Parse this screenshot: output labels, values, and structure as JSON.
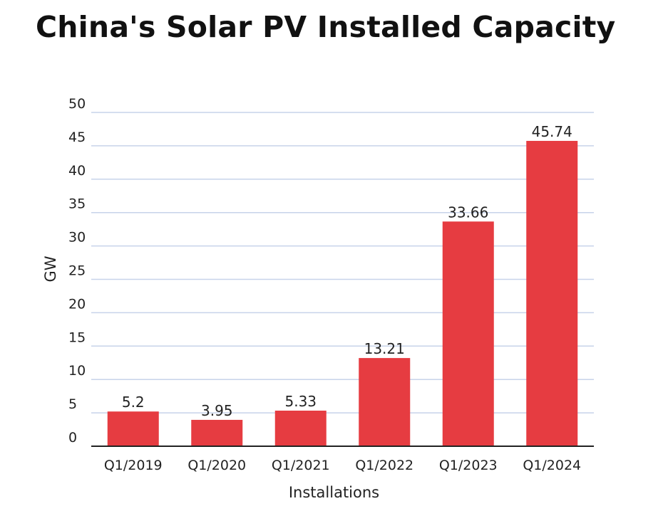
{
  "title": "China's Solar PV Installed Capacity",
  "chart_data": {
    "type": "bar",
    "title": "China's Solar PV Installed Capacity",
    "xlabel": "Installations",
    "ylabel": "GW",
    "categories": [
      "Q1/2019",
      "Q1/2020",
      "Q1/2021",
      "Q1/2022",
      "Q1/2023",
      "Q1/2024"
    ],
    "values": [
      5.2,
      3.95,
      5.33,
      13.21,
      33.66,
      45.74
    ],
    "value_labels": [
      "5.2",
      "3.95",
      "5.33",
      "13.21",
      "33.66",
      "45.74"
    ],
    "yticks": [
      0,
      5,
      10,
      15,
      20,
      25,
      30,
      35,
      40,
      45,
      50
    ],
    "ylim": [
      0,
      50
    ],
    "grid": true,
    "bar_color": "#e63c41",
    "grid_color": "#c7d3ea"
  }
}
